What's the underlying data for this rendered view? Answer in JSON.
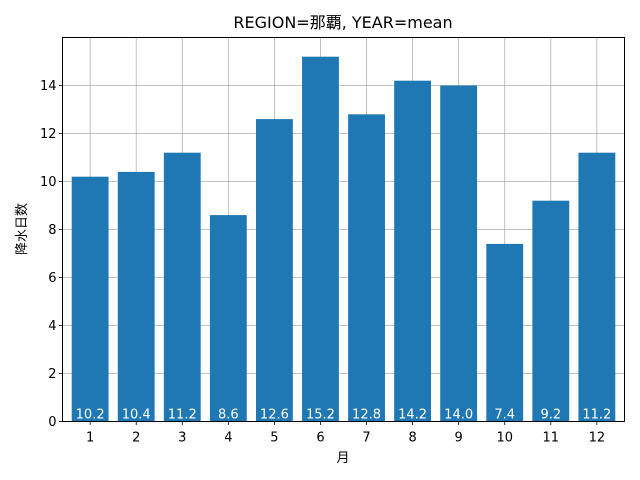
{
  "chart_data": {
    "type": "bar",
    "title": "REGION=那覇, YEAR=mean",
    "xlabel": "月",
    "ylabel": "降水日数",
    "categories": [
      "1",
      "2",
      "3",
      "4",
      "5",
      "6",
      "7",
      "8",
      "9",
      "10",
      "11",
      "12"
    ],
    "values": [
      10.2,
      10.4,
      11.2,
      8.6,
      12.6,
      15.2,
      12.8,
      14.2,
      14.0,
      7.4,
      9.2,
      11.2
    ],
    "data_labels": [
      "10.2",
      "10.4",
      "11.2",
      "8.6",
      "12.6",
      "15.2",
      "12.8",
      "14.2",
      "14.0",
      "7.4",
      "9.2",
      "11.2"
    ],
    "ylim": [
      0,
      16
    ],
    "yticks": [
      0,
      2,
      4,
      6,
      8,
      10,
      12,
      14
    ],
    "grid": true,
    "bar_color": "#1f77b4",
    "grid_color": "#b0b0b0"
  }
}
